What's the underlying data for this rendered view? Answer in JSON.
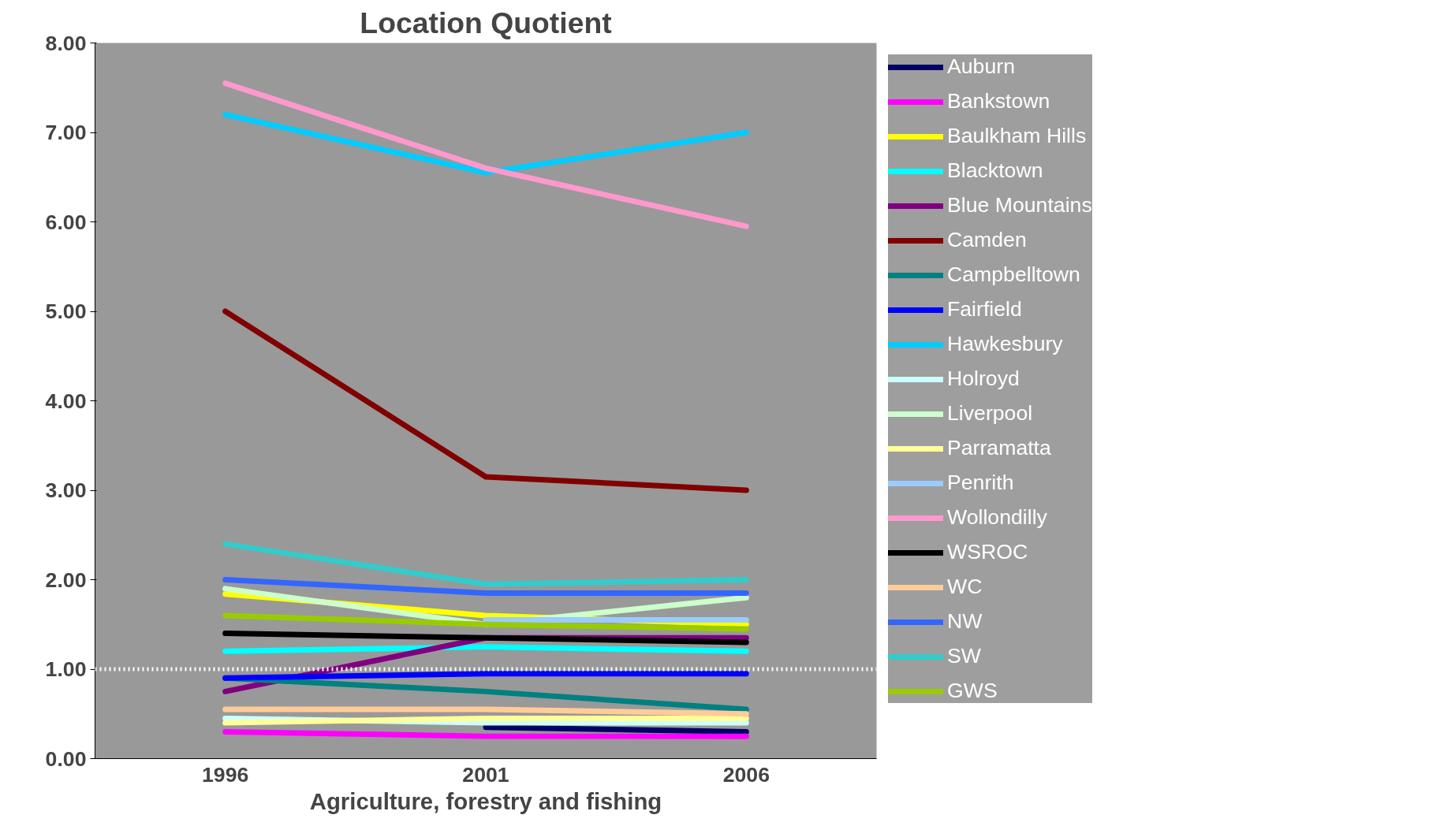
{
  "chart_data": {
    "type": "line",
    "title": "Location Quotient",
    "xlabel": "Agriculture, forestry and fishing",
    "categories": [
      "1996",
      "2001",
      "2006"
    ],
    "ylim": [
      0,
      8
    ],
    "yticks": [
      {
        "value": 0,
        "label": "0.00"
      },
      {
        "value": 1,
        "label": "1.00"
      },
      {
        "value": 2,
        "label": "2.00"
      },
      {
        "value": 3,
        "label": "3.00"
      },
      {
        "value": 4,
        "label": "4.00"
      },
      {
        "value": 5,
        "label": "5.00"
      },
      {
        "value": 6,
        "label": "6.00"
      },
      {
        "value": 7,
        "label": "7.00"
      },
      {
        "value": 8,
        "label": "8.00"
      }
    ],
    "grid": false,
    "legend": "right",
    "marker": "none",
    "line_style": "solid",
    "ref_lines": [
      {
        "axis": "y",
        "value": 1,
        "label": null,
        "color": "#ffffff",
        "line_style": "dotted"
      }
    ],
    "series": [
      {
        "name": "Auburn",
        "color": "#000066",
        "values": [
          null,
          0.35,
          0.3
        ]
      },
      {
        "name": "Bankstown",
        "color": "#ff00ff",
        "values": [
          0.3,
          0.25,
          0.25
        ]
      },
      {
        "name": "Baulkham Hills",
        "color": "#ffff00",
        "values": [
          1.84,
          1.6,
          1.5
        ]
      },
      {
        "name": "Blacktown",
        "color": "#00ffff",
        "values": [
          1.2,
          1.25,
          1.2
        ]
      },
      {
        "name": "Blue Mountains",
        "color": "#800080",
        "values": [
          0.75,
          1.35,
          1.35
        ]
      },
      {
        "name": "Camden",
        "color": "#800000",
        "values": [
          5.0,
          3.15,
          3.0
        ]
      },
      {
        "name": "Campbelltown",
        "color": "#008080",
        "values": [
          0.9,
          0.75,
          0.55
        ]
      },
      {
        "name": "Fairfield",
        "color": "#0000ff",
        "values": [
          0.9,
          0.95,
          0.95
        ]
      },
      {
        "name": "Hawkesbury",
        "color": "#00ccff",
        "values": [
          7.2,
          6.55,
          7.0
        ]
      },
      {
        "name": "Holroyd",
        "color": "#ccffff",
        "values": [
          0.45,
          0.4,
          0.4
        ]
      },
      {
        "name": "Liverpool",
        "color": "#ccffcc",
        "values": [
          1.9,
          1.5,
          1.8
        ]
      },
      {
        "name": "Parramatta",
        "color": "#ffff99",
        "values": [
          0.4,
          0.45,
          0.45
        ]
      },
      {
        "name": "Penrith",
        "color": "#99ccff",
        "values": [
          null,
          1.55,
          1.55
        ]
      },
      {
        "name": "Wollondilly",
        "color": "#ff99cc",
        "values": [
          7.55,
          6.6,
          5.95
        ]
      },
      {
        "name": "WSROC",
        "color": "#000000",
        "values": [
          1.4,
          1.35,
          1.3
        ]
      },
      {
        "name": "WC",
        "color": "#ffcc99",
        "values": [
          0.55,
          0.55,
          0.5
        ]
      },
      {
        "name": "NW",
        "color": "#3366ff",
        "values": [
          2.0,
          1.85,
          1.85
        ]
      },
      {
        "name": "SW",
        "color": "#33cccc",
        "values": [
          2.4,
          1.95,
          2.0
        ]
      },
      {
        "name": "GWS",
        "color": "#99cc00",
        "values": [
          1.6,
          1.5,
          1.45
        ]
      }
    ]
  }
}
